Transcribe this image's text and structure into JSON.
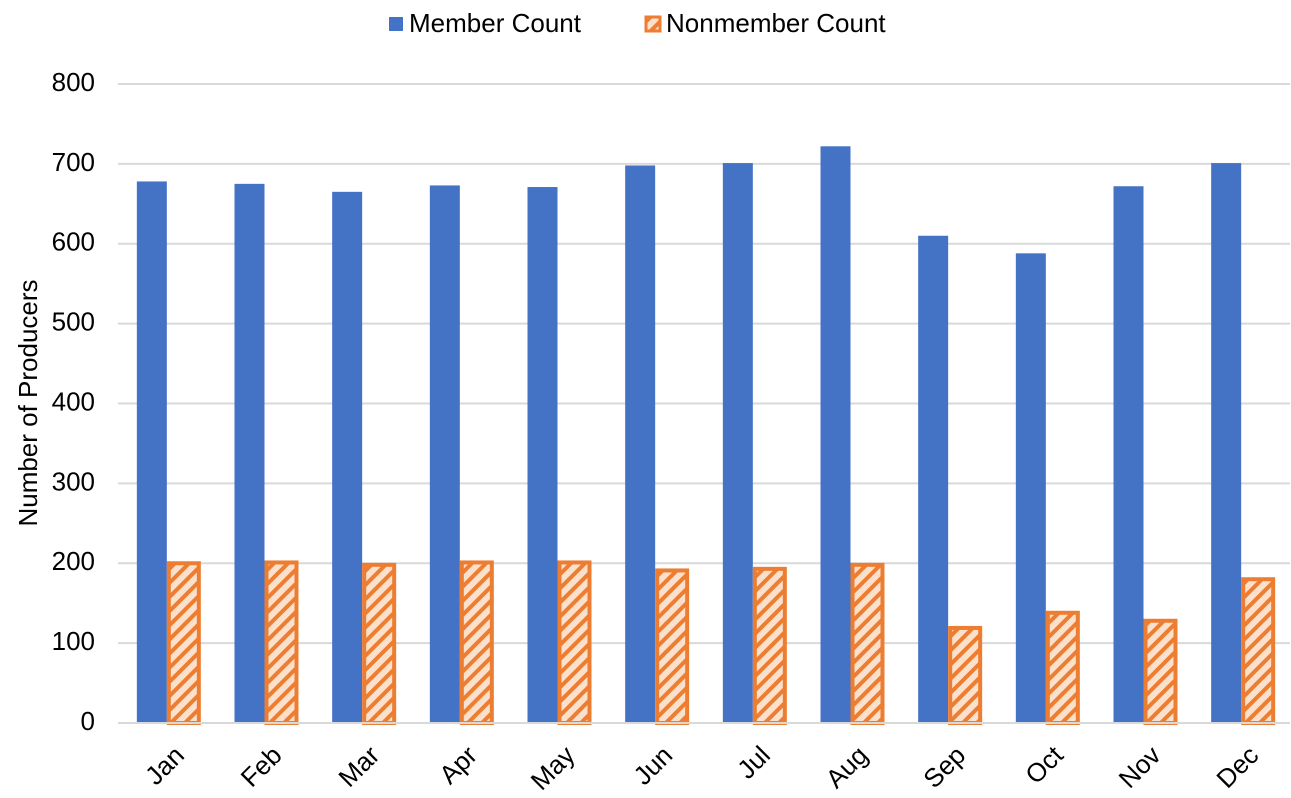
{
  "chart_data": {
    "type": "bar",
    "y_label": "Number of Producers",
    "categories": [
      "Jan",
      "Feb",
      "Mar",
      "Apr",
      "May",
      "Jun",
      "Jul",
      "Aug",
      "Sep",
      "Oct",
      "Nov",
      "Dec"
    ],
    "series": [
      {
        "name": "Member Count",
        "color": "#4472c4",
        "values": [
          678,
          675,
          665,
          673,
          671,
          698,
          701,
          722,
          610,
          588,
          672,
          701
        ]
      },
      {
        "name": "Nonmember Count",
        "color": "#ed7d31",
        "hatch": true,
        "values": [
          200,
          201,
          198,
          201,
          201,
          191,
          193,
          198,
          119,
          138,
          128,
          180
        ]
      }
    ],
    "ylim": [
      0,
      800
    ],
    "yticks": [
      0,
      100,
      200,
      300,
      400,
      500,
      600,
      700,
      800
    ],
    "grid": true,
    "legend": "top"
  }
}
